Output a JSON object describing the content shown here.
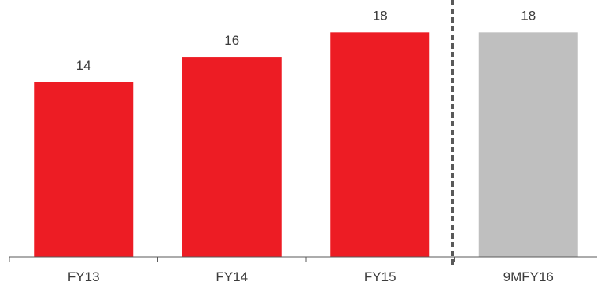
{
  "chart_data": {
    "type": "bar",
    "categories": [
      "FY13",
      "FY14",
      "FY15",
      "9MFY16"
    ],
    "values": [
      14,
      16,
      18,
      18
    ],
    "data_labels": [
      "14",
      "16",
      "18",
      "18"
    ],
    "bar_colors": [
      "#ed1c24",
      "#ed1c24",
      "#ed1c24",
      "#bfbfbf"
    ],
    "axis_color": "#595959",
    "divider": {
      "after_category": "FY15",
      "style": "dashed",
      "color": "#595959"
    },
    "ylim": [
      0,
      20.1
    ],
    "grid": false,
    "legend": "none",
    "title": "",
    "xlabel": "",
    "ylabel": ""
  }
}
